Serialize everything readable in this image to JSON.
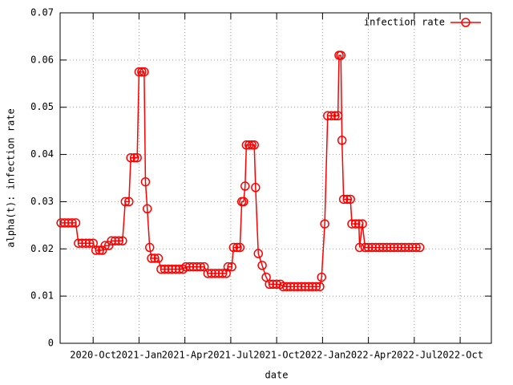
{
  "chart_data": {
    "type": "line",
    "xlabel": "date",
    "ylabel": "alpha(t): infection rate",
    "xlim": [
      2020.57,
      2022.92
    ],
    "ylim": [
      0,
      0.07
    ],
    "xticks": [
      {
        "value": 2020.75,
        "label": "2020-Oct"
      },
      {
        "value": 2021.0,
        "label": "2021-Jan"
      },
      {
        "value": 2021.25,
        "label": "2021-Apr"
      },
      {
        "value": 2021.5,
        "label": "2021-Jul"
      },
      {
        "value": 2021.75,
        "label": "2021-Oct"
      },
      {
        "value": 2022.0,
        "label": "2022-Jan"
      },
      {
        "value": 2022.25,
        "label": "2022-Apr"
      },
      {
        "value": 2022.5,
        "label": "2022-Jul"
      },
      {
        "value": 2022.75,
        "label": "2022-Oct"
      }
    ],
    "yticks": [
      0,
      0.01,
      0.02,
      0.03,
      0.04,
      0.05,
      0.06,
      0.07
    ],
    "grid": true,
    "legend": "top-right",
    "x": [
      2020.575,
      2020.595,
      2020.615,
      2020.635,
      2020.655,
      2020.67,
      2020.69,
      2020.71,
      2020.73,
      2020.75,
      2020.765,
      2020.785,
      2020.8,
      2020.815,
      2020.835,
      2020.85,
      2020.87,
      2020.89,
      2020.91,
      2020.925,
      2020.945,
      2020.955,
      2020.975,
      2020.99,
      2021.0,
      2021.015,
      2021.028,
      2021.035,
      2021.045,
      2021.058,
      2021.068,
      2021.085,
      2021.105,
      2021.12,
      2021.14,
      2021.16,
      2021.18,
      2021.2,
      2021.22,
      2021.24,
      2021.255,
      2021.275,
      2021.295,
      2021.315,
      2021.335,
      2021.355,
      2021.375,
      2021.395,
      2021.415,
      2021.435,
      2021.455,
      2021.475,
      2021.485,
      2021.505,
      2021.515,
      2021.535,
      2021.55,
      2021.56,
      2021.57,
      2021.578,
      2021.585,
      2021.6,
      2021.615,
      2021.628,
      2021.635,
      2021.65,
      2021.671,
      2021.693,
      2021.711,
      2021.73,
      2021.75,
      2021.77,
      2021.785,
      2021.805,
      2021.825,
      2021.845,
      2021.865,
      2021.885,
      2021.905,
      2021.925,
      2021.945,
      2021.965,
      2021.985,
      2021.995,
      2022.012,
      2022.028,
      2022.048,
      2022.068,
      2022.084,
      2022.09,
      2022.1,
      2022.106,
      2022.115,
      2022.135,
      2022.152,
      2022.16,
      2022.18,
      2022.198,
      2022.202,
      2022.217,
      2022.232,
      2022.25,
      2022.27,
      2022.29,
      2022.31,
      2022.33,
      2022.35,
      2022.37,
      2022.39,
      2022.41,
      2022.43,
      2022.45,
      2022.47,
      2022.49,
      2022.51,
      2022.53
    ],
    "series": [
      {
        "name": "infection rate",
        "color": "#ff0000",
        "values": [
          0.0255,
          0.0255,
          0.0255,
          0.0255,
          0.0255,
          0.0212,
          0.0212,
          0.0212,
          0.0212,
          0.0212,
          0.0197,
          0.0197,
          0.0197,
          0.0207,
          0.0207,
          0.0217,
          0.0217,
          0.0217,
          0.0217,
          0.03,
          0.03,
          0.0393,
          0.0393,
          0.0393,
          0.0575,
          0.0575,
          0.0575,
          0.0342,
          0.0285,
          0.0203,
          0.018,
          0.018,
          0.018,
          0.0157,
          0.0157,
          0.0157,
          0.0157,
          0.0157,
          0.0157,
          0.0157,
          0.0162,
          0.0162,
          0.0162,
          0.0162,
          0.0162,
          0.0162,
          0.0148,
          0.0148,
          0.0148,
          0.0148,
          0.0148,
          0.0148,
          0.0162,
          0.0162,
          0.0203,
          0.0203,
          0.0203,
          0.03,
          0.03,
          0.0333,
          0.042,
          0.042,
          0.042,
          0.042,
          0.033,
          0.019,
          0.0165,
          0.014,
          0.0125,
          0.0125,
          0.0125,
          0.0125,
          0.012,
          0.012,
          0.012,
          0.012,
          0.012,
          0.012,
          0.012,
          0.012,
          0.012,
          0.012,
          0.012,
          0.014,
          0.0253,
          0.0482,
          0.0482,
          0.0482,
          0.0482,
          0.061,
          0.061,
          0.043,
          0.0305,
          0.0305,
          0.0305,
          0.0253,
          0.0253,
          0.0253,
          0.0203,
          0.0253,
          0.0203,
          0.0203,
          0.0203,
          0.0203,
          0.0203,
          0.0203,
          0.0203,
          0.0203,
          0.0203,
          0.0203,
          0.0203,
          0.0203,
          0.0203,
          0.0203,
          0.0203,
          0.0203
        ]
      }
    ]
  }
}
